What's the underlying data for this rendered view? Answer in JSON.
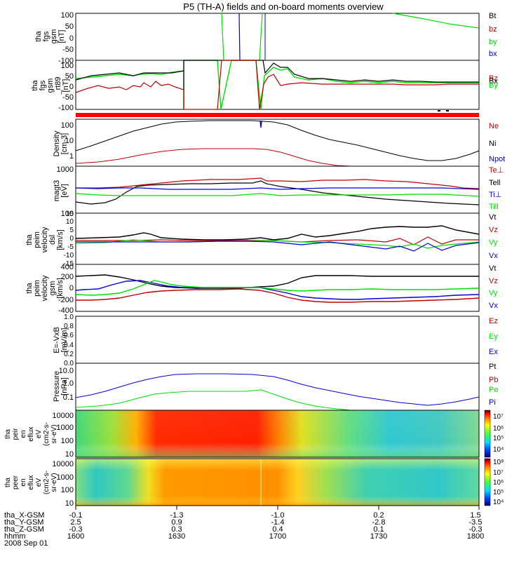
{
  "title": "P5 (TH-A) fields and on-board moments overview",
  "date": "2008 Sep 01",
  "ephemeris": {
    "labels": [
      "tha_X-GSM",
      "tha_Y-GSM",
      "tha_Z-GSM",
      "hhmm"
    ],
    "columns": [
      [
        "-0.1",
        "2.5",
        "-0.3",
        "1600"
      ],
      [
        "-1.3",
        "0.9",
        "0.3",
        "1630"
      ],
      [
        "-1.0",
        "-1.4",
        "0.4",
        "1700"
      ],
      [
        "0.2",
        "-2.8",
        "0.1",
        "1730"
      ],
      [
        "1.5",
        "-3.5",
        "-0.3",
        "1800"
      ]
    ]
  },
  "colors": {
    "black": "#000000",
    "red": "#c00000",
    "green": "#00dd00",
    "blue": "#0000dd"
  },
  "chart_data": [
    {
      "id": "p1",
      "type": "line",
      "ylabel": [
        "tha",
        "fgs",
        "gsm",
        "[nT]"
      ],
      "yticks": [
        "100",
        "50",
        "0",
        "-50",
        "-100"
      ],
      "ylim": [
        -100,
        100
      ],
      "legend": [
        {
          "name": "Bt",
          "color": "#000000"
        },
        {
          "name": "bz",
          "color": "#c00000"
        },
        {
          "name": "by",
          "color": "#00dd00"
        },
        {
          "name": "bx",
          "color": "#0000dd"
        }
      ]
    },
    {
      "id": "p2",
      "type": "line",
      "ylabel": [
        "tha",
        "fgs",
        "gsm",
        "_rt89",
        "[nT]"
      ],
      "yticks": [
        "100",
        "50",
        "0",
        "-50",
        "-100"
      ],
      "ylim": [
        -120,
        100
      ],
      "legend": [
        {
          "name": "Bz",
          "color": "#c00000"
        },
        {
          "name": "Bx",
          "color": "#000000"
        },
        {
          "name": "By",
          "color": "#00dd00"
        }
      ]
    },
    {
      "id": "p3",
      "type": "line",
      "scale": "log",
      "ylabel": [
        "Density",
        "[cm-3]"
      ],
      "yticks": [
        "100",
        "10",
        "1"
      ],
      "ylim": [
        0.5,
        300
      ],
      "legend": [
        {
          "name": "Ne",
          "color": "#c00000"
        },
        {
          "name": "Ni",
          "color": "#000000"
        },
        {
          "name": "Npot",
          "color": "#0000dd"
        }
      ]
    },
    {
      "id": "p4",
      "type": "line",
      "scale": "log",
      "ylabel": [
        "magt3",
        "[eV]"
      ],
      "yticks": [
        "1000",
        "100"
      ],
      "ylim": [
        100,
        1000
      ],
      "legend": [
        {
          "name": "Te⊥",
          "color": "#c00000"
        },
        {
          "name": "Tell",
          "color": "#000000"
        },
        {
          "name": "Ti⊥",
          "color": "#0000dd"
        },
        {
          "name": "Till",
          "color": "#00dd00"
        }
      ]
    },
    {
      "id": "p5",
      "type": "line",
      "ylabel": [
        "tha",
        "peim",
        "velocity",
        "dsl",
        "[km/s]"
      ],
      "yticks": [
        "15",
        "10",
        "5",
        "0",
        "-5",
        "-10",
        "-15"
      ],
      "ylim": [
        -15,
        15
      ],
      "legend": [
        {
          "name": "Vt",
          "color": "#000000"
        },
        {
          "name": "Vz",
          "color": "#c00000"
        },
        {
          "name": "Vy",
          "color": "#00dd00"
        },
        {
          "name": "Vx",
          "color": "#0000dd"
        }
      ]
    },
    {
      "id": "p6",
      "type": "line",
      "ylabel": [
        "tha",
        "peim",
        "velocity",
        "gsm",
        "[km/s]"
      ],
      "yticks": [
        "400",
        "200",
        "0",
        "-200",
        "-400"
      ],
      "ylim": [
        -400,
        400
      ],
      "legend": [
        {
          "name": "Vt",
          "color": "#000000"
        },
        {
          "name": "Vz",
          "color": "#c00000"
        },
        {
          "name": "Vy",
          "color": "#00dd00"
        },
        {
          "name": "Vx",
          "color": "#0000dd"
        }
      ]
    },
    {
      "id": "p7",
      "type": "line",
      "ylabel": [
        "E=-VxB",
        "[mV/m]"
      ],
      "yticks": [
        "1.0",
        "0.8",
        "0.6",
        "0.4",
        "0.2",
        "0.0"
      ],
      "ylim": [
        0,
        1
      ],
      "legend": [
        {
          "name": "Ez",
          "color": "#c00000"
        },
        {
          "name": "Ey",
          "color": "#00dd00"
        },
        {
          "name": "Ex",
          "color": "#0000dd"
        }
      ]
    },
    {
      "id": "p8",
      "type": "line",
      "scale": "log",
      "ylabel": [
        "Pressure",
        "[nPa]"
      ],
      "yticks": [
        "10.0",
        "1.0",
        "0.1"
      ],
      "ylim": [
        0.015,
        25
      ],
      "legend": [
        {
          "name": "Pt",
          "color": "#000000"
        },
        {
          "name": "Pb",
          "color": "#c00000"
        },
        {
          "name": "Pe",
          "color": "#00dd00"
        },
        {
          "name": "Pi",
          "color": "#0000dd"
        }
      ]
    },
    {
      "id": "p9",
      "type": "heatmap",
      "ylabel": [
        "tha",
        "peir",
        "en",
        "eflux",
        "eV",
        "(cm2-s-",
        "sr-eV)"
      ],
      "yticks": [
        "10000",
        "1000",
        "100",
        "10"
      ],
      "colorbar_ticks": [
        "10⁷",
        "10⁶",
        "10⁵",
        "10⁴"
      ]
    },
    {
      "id": "p10",
      "type": "heatmap",
      "ylabel": [
        "tha",
        "peer",
        "en",
        "eflux",
        "eV",
        "(cm2-s-",
        "sr-eV)"
      ],
      "yticks": [
        "10000",
        "1000",
        "100",
        "10"
      ],
      "colorbar_ticks": [
        "10⁸",
        "10⁷",
        "10⁶",
        "10⁵",
        "10⁴"
      ]
    }
  ]
}
